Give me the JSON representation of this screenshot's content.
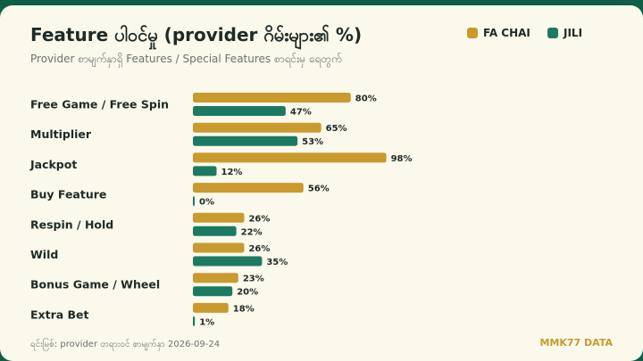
{
  "header": {
    "title": "Feature ပါဝင်မှု (provider ဂိမ်းများ၏ %)",
    "subtitle": "Provider စာမျက်နှာရှိ Features / Special Features စာရင်းမှ ရေတွက်"
  },
  "footer": {
    "source": "ရင်းမြစ်: provider တရားဝင် စာမျက်နှာ 2026-09-24",
    "brand": "MMK77 DATA"
  },
  "colors": {
    "fa_chai": "#c99a2e",
    "jili": "#1d7a62"
  },
  "chart_data": {
    "type": "bar",
    "orientation": "horizontal",
    "categories": [
      "Free Game / Free Spin",
      "Multiplier",
      "Jackpot",
      "Buy Feature",
      "Respin / Hold",
      "Wild",
      "Bonus Game / Wheel",
      "Extra Bet"
    ],
    "series": [
      {
        "name": "FA CHAI",
        "values": [
          80,
          65,
          98,
          56,
          26,
          26,
          23,
          18
        ]
      },
      {
        "name": "JILI",
        "values": [
          47,
          53,
          12,
          0,
          22,
          35,
          20,
          1
        ]
      }
    ],
    "value_suffix": "%",
    "xlim": [
      0,
      100
    ],
    "legend_position": "top-right",
    "grid": false
  }
}
